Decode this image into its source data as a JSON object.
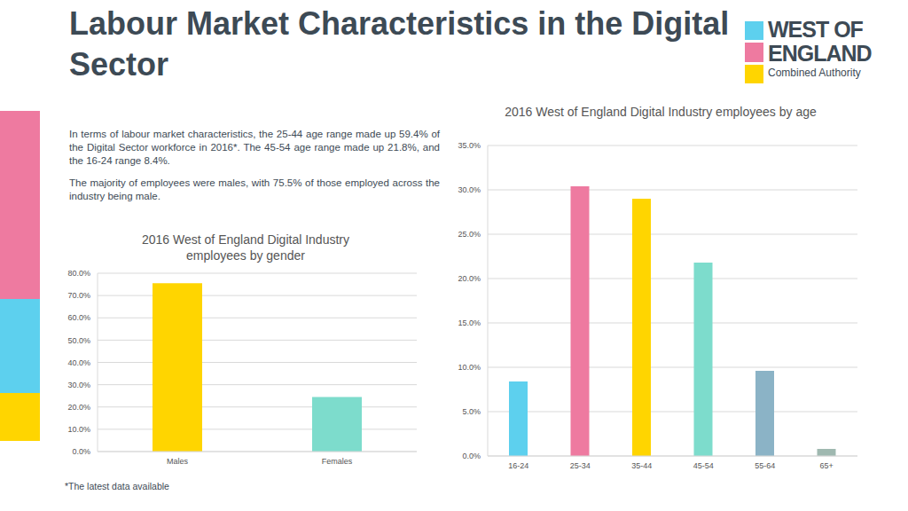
{
  "title": "Labour Market Characteristics in the Digital Sector",
  "logo": {
    "line1": "WEST OF",
    "line2": "ENGLAND",
    "line3": "Combined Authority"
  },
  "paragraphs": [
    "In terms of labour market characteristics, the 25-44 age range made up 59.4% of the Digital Sector workforce in 2016*. The 45-54 age range made up 21.8%, and the 16-24 range 8.4%.",
    "The majority of employees were males, with 75.5% of those employed across the industry being male."
  ],
  "footnote": "*The latest data available",
  "chart_data": [
    {
      "type": "bar",
      "title": "2016 West of England Digital Industry employees by gender",
      "categories": [
        "Males",
        "Females"
      ],
      "values": [
        75.5,
        24.5
      ],
      "colors": [
        "#ffd500",
        "#7ddccc"
      ],
      "ylim": [
        0,
        80
      ],
      "yticks": [
        {
          "value": 0,
          "label": "0.0%"
        },
        {
          "value": 10,
          "label": "10.0%"
        },
        {
          "value": 20,
          "label": "20.0%"
        },
        {
          "value": 30,
          "label": "30.0%"
        },
        {
          "value": 40,
          "label": "40.0%"
        },
        {
          "value": 50,
          "label": "50.0%"
        },
        {
          "value": 60,
          "label": "60.0%"
        },
        {
          "value": 70,
          "label": "70.0%"
        },
        {
          "value": 80,
          "label": "80.0%"
        }
      ],
      "grid": true
    },
    {
      "type": "bar",
      "title": "2016 West of England Digital Industry employees by age",
      "categories": [
        "16-24",
        "25-34",
        "35-44",
        "45-54",
        "55-64",
        "65+"
      ],
      "values": [
        8.4,
        30.4,
        29.0,
        21.8,
        9.6,
        0.8
      ],
      "colors": [
        "#5dd0ee",
        "#ee7aa0",
        "#ffd500",
        "#7ddccc",
        "#8bb3c6",
        "#9fb8b0"
      ],
      "ylim": [
        0,
        35
      ],
      "yticks": [
        {
          "value": 0,
          "label": "0.0%"
        },
        {
          "value": 5,
          "label": "5.0%"
        },
        {
          "value": 10,
          "label": "10.0%"
        },
        {
          "value": 15,
          "label": "15.0%"
        },
        {
          "value": 20,
          "label": "20.0%"
        },
        {
          "value": 25,
          "label": "25.0%"
        },
        {
          "value": 30,
          "label": "30.0%"
        },
        {
          "value": 35,
          "label": "35.0%"
        }
      ],
      "grid": true
    }
  ]
}
